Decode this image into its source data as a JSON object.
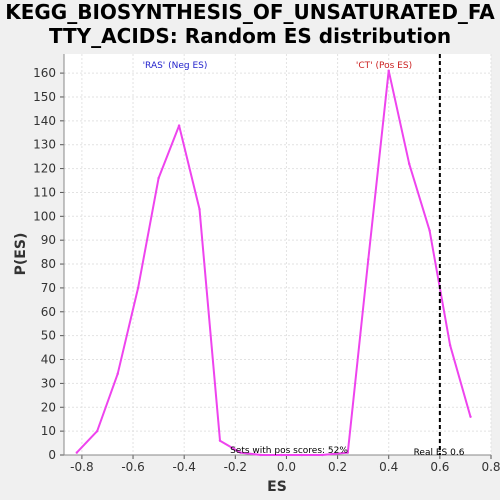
{
  "chart_data": {
    "type": "line",
    "title_line1": "KEGG_BIOSYNTHESIS_OF_UNSATURATED_FA",
    "title_line2": "TTY_ACIDS: Random ES distribution",
    "xlabel": "ES",
    "ylabel": "P(ES)",
    "xlim": [
      -0.87,
      0.8
    ],
    "ylim": [
      0,
      168
    ],
    "x_ticks": [
      -0.8,
      -0.6,
      -0.4,
      -0.2,
      0.0,
      0.2,
      0.4,
      0.6,
      0.8
    ],
    "x_tick_labels": [
      "-0.8",
      "-0.6",
      "-0.4",
      "-0.2",
      "0.0",
      "0.2",
      "0.4",
      "0.6",
      "0.8"
    ],
    "y_ticks": [
      0,
      10,
      20,
      30,
      40,
      50,
      60,
      70,
      80,
      90,
      100,
      110,
      120,
      130,
      140,
      150,
      160
    ],
    "grid": true,
    "series": [
      {
        "color": "#ee44ee",
        "x": [
          -0.82,
          -0.74,
          -0.66,
          -0.58,
          -0.5,
          -0.42,
          -0.34,
          -0.26,
          -0.18,
          -0.1,
          -0.02,
          0.06,
          0.14,
          0.24,
          0.32,
          0.4,
          0.48,
          0.56,
          0.64,
          0.72
        ],
        "y": [
          1,
          10,
          34,
          70,
          116,
          138,
          103,
          6,
          1,
          0,
          0,
          0,
          0,
          1,
          82,
          161,
          122,
          94,
          46,
          16
        ]
      }
    ],
    "real_es": 0.6,
    "annotations": {
      "neg_label": "'RAS' (Neg ES)",
      "pos_label": "'CT' (Pos ES)",
      "pos_scores": "Sets with pos scores: 52%",
      "real_es_label": "Real ES 0.6"
    },
    "colors": {
      "neg_label": "#2222cc",
      "pos_label": "#cc2222",
      "line": "#ee44ee"
    }
  }
}
